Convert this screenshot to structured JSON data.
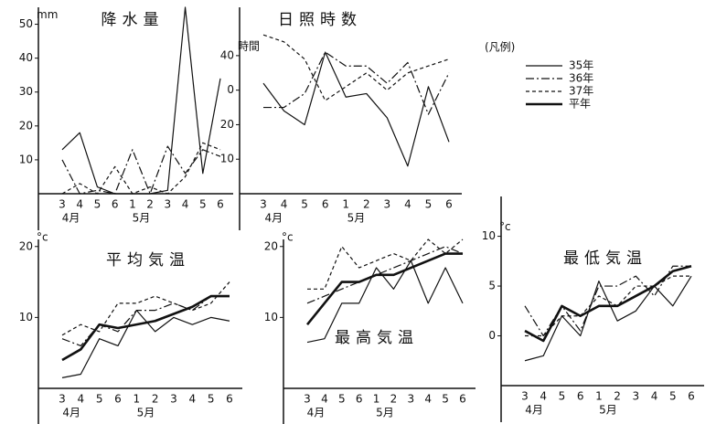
{
  "chart_data": [
    {
      "type": "line",
      "title": "降水量",
      "y_unit": "mm",
      "categories": [
        "3",
        "4",
        "5",
        "6",
        "1",
        "2",
        "3",
        "4",
        "5",
        "6"
      ],
      "x_groups": [
        "4月",
        "5月"
      ],
      "ylim": [
        0,
        55
      ],
      "yticks": [
        10,
        20,
        30,
        40,
        50
      ],
      "series": [
        {
          "name": "35年",
          "color": "#111",
          "values": [
            13,
            18,
            2,
            0,
            0,
            0,
            1,
            55,
            6,
            34
          ]
        },
        {
          "name": "36年",
          "color": "#111",
          "values": [
            10,
            0,
            1,
            0,
            13,
            0,
            14,
            6,
            13,
            11
          ]
        },
        {
          "name": "37年",
          "color": "#111",
          "values": [
            0,
            3,
            0,
            8,
            0,
            2,
            0,
            5,
            15,
            13
          ]
        }
      ]
    },
    {
      "type": "line",
      "title": "日照時数",
      "y_unit": "時間",
      "legend_title": "(凡例)",
      "categories": [
        "3",
        "4",
        "5",
        "6",
        "1",
        "2",
        "3",
        "4",
        "5",
        "6"
      ],
      "x_groups": [
        "4月",
        "5月"
      ],
      "ylim": [
        0,
        54
      ],
      "yticks": [
        10,
        20,
        {
          "value": 30,
          "label": "0"
        },
        40
      ],
      "series": [
        {
          "name": "35年",
          "color": "#111",
          "values": [
            32,
            24,
            20,
            41,
            28,
            29,
            22,
            8,
            31,
            15
          ]
        },
        {
          "name": "36年",
          "color": "#111",
          "values": [
            25,
            25,
            29,
            41,
            37,
            37,
            32,
            38,
            23,
            35
          ]
        },
        {
          "name": "37年",
          "color": "#111",
          "values": [
            46,
            44,
            39,
            27,
            31,
            35,
            30,
            35,
            37,
            39
          ]
        }
      ]
    },
    {
      "type": "line",
      "title": "平均気温",
      "y_unit": "°c",
      "categories": [
        "3",
        "4",
        "5",
        "6",
        "1",
        "2",
        "3",
        "4",
        "5",
        "6"
      ],
      "x_groups": [
        "4月",
        "5月"
      ],
      "ylim": [
        0,
        21
      ],
      "yticks": [
        10,
        20
      ],
      "series": [
        {
          "name": "35年",
          "color": "#111",
          "values": [
            1.5,
            2,
            7,
            6,
            11,
            8,
            10,
            9,
            10,
            9.5
          ]
        },
        {
          "name": "36年",
          "color": "#111",
          "values": [
            7,
            6,
            9,
            8,
            11,
            11,
            12,
            11,
            13,
            13
          ]
        },
        {
          "name": "37年",
          "color": "#111",
          "values": [
            7.5,
            9,
            8,
            12,
            12,
            13,
            12,
            11,
            12,
            15
          ]
        },
        {
          "name": "平年",
          "color": "#111",
          "values": [
            4,
            5.5,
            9,
            8.5,
            9,
            9.5,
            10.5,
            11.5,
            13,
            13
          ]
        }
      ]
    },
    {
      "type": "line",
      "title": "最高気温",
      "y_unit": "°c",
      "categories": [
        "3",
        "4",
        "5",
        "6",
        "1",
        "2",
        "3",
        "4",
        "5",
        "6"
      ],
      "x_groups": [
        "4月",
        "5月"
      ],
      "ylim": [
        0,
        21
      ],
      "yticks": [
        10,
        20
      ],
      "series": [
        {
          "name": "35年",
          "color": "#111",
          "values": [
            6.5,
            7,
            12,
            12,
            17,
            14,
            18,
            12,
            17,
            12
          ]
        },
        {
          "name": "36年",
          "color": "#111",
          "values": [
            12,
            13,
            14,
            15,
            16,
            17,
            18,
            19,
            20,
            19
          ]
        },
        {
          "name": "37年",
          "color": "#111",
          "values": [
            14,
            14,
            20,
            17,
            18,
            19,
            18,
            21,
            19,
            21
          ]
        },
        {
          "name": "平年",
          "color": "#111",
          "values": [
            9,
            12,
            15,
            15,
            16,
            16,
            17,
            18,
            19,
            19
          ]
        }
      ]
    },
    {
      "type": "line",
      "title": "最低気温",
      "y_unit": "°c",
      "categories": [
        "3",
        "4",
        "5",
        "6",
        "1",
        "2",
        "3",
        "4",
        "5",
        "6"
      ],
      "x_groups": [
        "4月",
        "5月"
      ],
      "ylim": [
        -5,
        14
      ],
      "yticks": [
        0,
        5,
        10
      ],
      "series": [
        {
          "name": "35年",
          "color": "#111",
          "values": [
            -2.5,
            -2,
            2,
            0,
            5.5,
            1.5,
            2.5,
            5,
            3,
            6
          ]
        },
        {
          "name": "36年",
          "color": "#111",
          "values": [
            3,
            0,
            3,
            0.5,
            5,
            5,
            6,
            4,
            7,
            7
          ]
        },
        {
          "name": "37年",
          "color": "#111",
          "values": [
            0,
            0,
            2,
            2,
            4,
            3,
            5,
            5,
            6,
            6
          ]
        },
        {
          "name": "平年",
          "color": "#111",
          "values": [
            0.5,
            -0.5,
            3,
            2,
            3,
            3,
            4,
            5,
            6.5,
            7
          ]
        }
      ]
    }
  ]
}
